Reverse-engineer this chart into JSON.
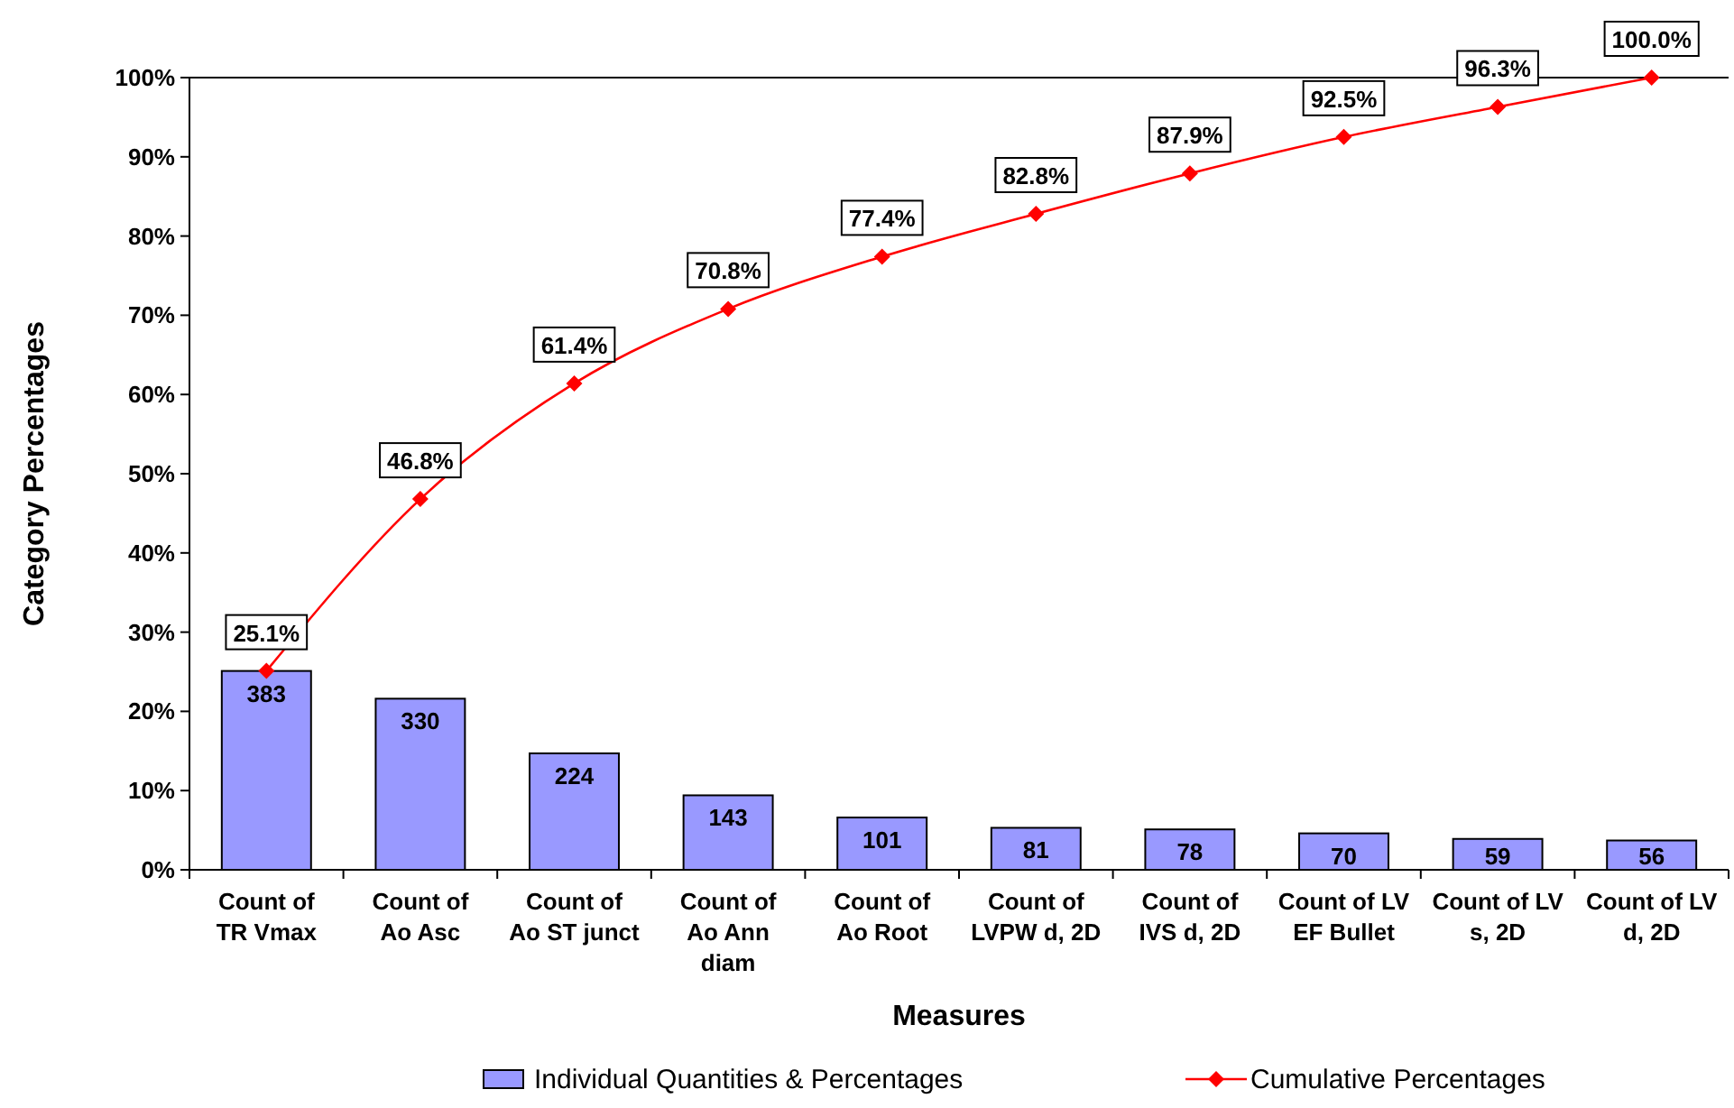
{
  "chart_data": {
    "type": "bar",
    "xlabel": "Measures",
    "ylabel": "Category Percentages",
    "legend": "bottom",
    "categories": [
      "Count of TR Vmax",
      "Count of Ao Asc",
      "Count of Ao ST junct",
      "Count of Ao Ann diam",
      "Count of Ao Root",
      "Count of LVPW d, 2D",
      "Count of IVS d, 2D",
      "Count of LV EF Bullet",
      "Count of LV s, 2D",
      "Count of LV d, 2D"
    ],
    "ylim": [
      0,
      100
    ],
    "annotations": [
      {
        "text": "383",
        "x": "Count of TR Vmax",
        "y": 25.1
      },
      {
        "text": "330",
        "x": "Count of Ao Asc",
        "y": 21.6
      },
      {
        "text": "224",
        "x": "Count of Ao ST junct",
        "y": 14.7
      },
      {
        "text": "143",
        "x": "Count of Ao Ann diam",
        "y": 9.4
      },
      {
        "text": "101",
        "x": "Count of Ao Root",
        "y": 6.6
      },
      {
        "text": "81",
        "x": "Count of LVPW d, 2D",
        "y": 5.3
      },
      {
        "text": "78",
        "x": "Count of IVS d, 2D",
        "y": 5.1
      },
      {
        "text": "70",
        "x": "Count of LV EF Bullet",
        "y": 4.6
      },
      {
        "text": "59",
        "x": "Count of LV s, 2D",
        "y": 3.9
      },
      {
        "text": "56",
        "x": "Count of LV d, 2D",
        "y": 3.7
      }
    ],
    "yticks": [
      {
        "value": 0,
        "label": "0%"
      },
      {
        "value": 10,
        "label": "10%"
      },
      {
        "value": 20,
        "label": "20%"
      },
      {
        "value": 30,
        "label": "30%"
      },
      {
        "value": 40,
        "label": "40%"
      },
      {
        "value": 50,
        "label": "50%"
      },
      {
        "value": 60,
        "label": "60%"
      },
      {
        "value": 70,
        "label": "70%"
      },
      {
        "value": 80,
        "label": "80%"
      },
      {
        "value": 90,
        "label": "90%"
      },
      {
        "value": 100,
        "label": "100%"
      }
    ],
    "series": [
      {
        "name": "Individual Quantities & Percentages",
        "color": "#9999ff",
        "values": [
          25.1,
          21.6,
          14.7,
          9.4,
          6.6,
          5.3,
          5.1,
          4.6,
          3.9,
          3.7
        ]
      },
      {
        "name": "Cumulative Percentages",
        "type": "line",
        "color": "#ff0000",
        "marker": "diamond",
        "values": [
          25.1,
          46.8,
          61.4,
          70.8,
          77.4,
          82.8,
          87.9,
          92.5,
          96.3,
          100
        ],
        "value_labels": [
          "25.1%",
          "46.8%",
          "61.4%",
          "70.8%",
          "77.4%",
          "82.8%",
          "87.9%",
          "92.5%",
          "96.3%",
          "100.0%"
        ]
      }
    ]
  }
}
